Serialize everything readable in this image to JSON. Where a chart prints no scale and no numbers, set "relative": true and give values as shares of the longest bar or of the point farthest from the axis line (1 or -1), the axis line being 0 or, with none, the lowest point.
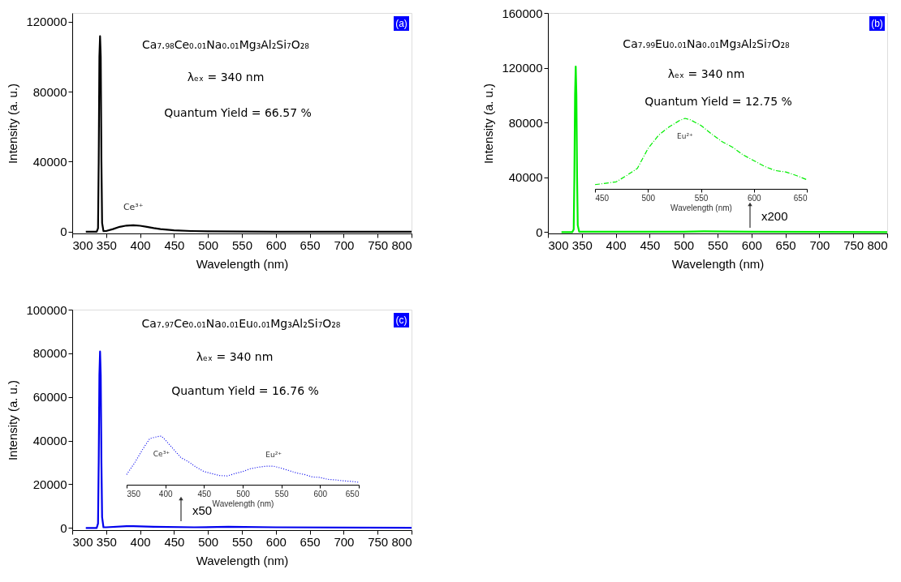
{
  "chart_data": [
    {
      "type": "line",
      "xlabel": "Wavelength (nm)",
      "ylabel": "Intensity (a. u.)",
      "xlim": [
        300,
        800
      ],
      "ylim": [
        -1000,
        125000
      ],
      "xticks": [
        300,
        350,
        400,
        450,
        500,
        550,
        600,
        650,
        700,
        750,
        800
      ],
      "yticks": [
        0,
        40000,
        80000,
        120000
      ],
      "marker": "none",
      "line_style": "solid",
      "series": [
        {
          "color": "#000000",
          "x": [
            320,
            330,
            336,
            338,
            339,
            340,
            341,
            342,
            343,
            344,
            346,
            350,
            360,
            370,
            380,
            390,
            400,
            410,
            420,
            430,
            450,
            475,
            500,
            550,
            600,
            700,
            800
          ],
          "values": [
            0,
            0,
            0,
            2000,
            40000,
            100000,
            111700,
            100000,
            40000,
            5000,
            300,
            400,
            1500,
            2800,
            3500,
            3700,
            3400,
            2800,
            2100,
            1500,
            800,
            400,
            200,
            100,
            0,
            0,
            0
          ]
        }
      ],
      "annotations": [
        "(a)",
        "Ca₇.₉₈Ce₀.₀₁Na₀.₀₁Mg₃Al₂Si₇O₂₈",
        "λₑₓ = 340 nm",
        "Quantum Yield = 66.57 %",
        {
          "text": "Ce³⁺",
          "x": 390,
          "y": 3700
        }
      ]
    },
    {
      "type": "line",
      "xlabel": "Wavelength (nm)",
      "ylabel": "Intensity (a. u.)",
      "xlim": [
        300,
        800
      ],
      "ylim": [
        -1000,
        160000
      ],
      "xticks": [
        300,
        350,
        400,
        450,
        500,
        550,
        600,
        650,
        700,
        750,
        800
      ],
      "yticks": [
        0,
        40000,
        80000,
        120000,
        160000
      ],
      "marker": "none",
      "line_style": "solid",
      "series": [
        {
          "color": "#00ee00",
          "x": [
            320,
            330,
            336,
            338,
            339,
            340,
            341,
            342,
            343,
            344,
            346,
            350,
            400,
            450,
            500,
            530,
            560,
            600,
            700,
            800
          ],
          "values": [
            0,
            0,
            0,
            2000,
            40000,
            100000,
            120900,
            100000,
            40000,
            5000,
            300,
            300,
            200,
            200,
            300,
            500,
            400,
            300,
            100,
            0
          ]
        }
      ],
      "annotations": [
        "(b)",
        "Ca₇.₉₉Eu₀.₀₁Na₀.₀₁Mg₃Al₂Si₇O₂₈",
        "λₑₓ = 340 nm",
        "Quantum Yield = 12.75 %",
        "x200"
      ]
    },
    {
      "type": "line",
      "relative": true,
      "xlabel": "Wavelength (nm)",
      "xlim": [
        450,
        650
      ],
      "xticks": [
        450,
        500,
        550,
        600,
        650
      ],
      "marker": "none",
      "line_style": "dashed",
      "series": [
        {
          "color": "#00ee00",
          "x": [
            450,
            460,
            470,
            480,
            490,
            500,
            510,
            520,
            530,
            535,
            540,
            550,
            560,
            570,
            580,
            590,
            600,
            610,
            620,
            630,
            640,
            650
          ],
          "values": [
            0.06,
            0.08,
            0.1,
            0.19,
            0.29,
            0.57,
            0.76,
            0.88,
            0.97,
            1.0,
            0.98,
            0.9,
            0.78,
            0.67,
            0.59,
            0.48,
            0.4,
            0.32,
            0.26,
            0.24,
            0.19,
            0.13
          ]
        }
      ],
      "annotations": [
        {
          "text": "Eu²⁺",
          "x": 535,
          "y": 1.0
        }
      ]
    },
    {
      "type": "line",
      "xlabel": "Wavelength (nm)",
      "ylabel": "Intensity (a. u.)",
      "xlim": [
        300,
        800
      ],
      "ylim": [
        -1000,
        100000
      ],
      "xticks": [
        300,
        350,
        400,
        450,
        500,
        550,
        600,
        650,
        700,
        750,
        800
      ],
      "yticks": [
        0,
        20000,
        40000,
        60000,
        80000,
        100000
      ],
      "marker": "none",
      "line_style": "solid",
      "series": [
        {
          "color": "#0000ee",
          "x": [
            320,
            330,
            336,
            338,
            339,
            340,
            341,
            342,
            343,
            344,
            346,
            350,
            380,
            390,
            420,
            480,
            530,
            600,
            800
          ],
          "values": [
            0,
            0,
            0,
            2000,
            30000,
            70000,
            80800,
            70000,
            30000,
            5000,
            300,
            300,
            800,
            800,
            500,
            300,
            500,
            300,
            100
          ]
        }
      ],
      "annotations": [
        "(c)",
        "Ca₇.₉₇Ce₀.₀₁Na₀.₀₁Eu₀.₀₁Mg₃Al₂Si₇O₂₈",
        "λₑₓ = 340 nm",
        "Quantum Yield = 16.76 %",
        "x50"
      ]
    },
    {
      "type": "line",
      "relative": true,
      "xlabel": "Wavelength (nm)",
      "xlim": [
        350,
        650
      ],
      "xticks": [
        350,
        400,
        450,
        500,
        550,
        600,
        650
      ],
      "marker": "none",
      "line_style": "dotted",
      "series": [
        {
          "color": "#0000ee",
          "x": [
            350,
            360,
            370,
            380,
            390,
            395,
            400,
            410,
            420,
            430,
            440,
            450,
            460,
            470,
            480,
            490,
            500,
            510,
            520,
            530,
            540,
            550,
            560,
            570,
            580,
            590,
            600,
            610,
            620,
            630,
            640,
            650
          ],
          "values": [
            0.21,
            0.44,
            0.71,
            0.95,
            0.99,
            1.0,
            0.92,
            0.74,
            0.56,
            0.47,
            0.36,
            0.27,
            0.23,
            0.19,
            0.18,
            0.23,
            0.27,
            0.33,
            0.36,
            0.38,
            0.38,
            0.34,
            0.29,
            0.24,
            0.21,
            0.16,
            0.15,
            0.11,
            0.1,
            0.08,
            0.07,
            0.05
          ]
        }
      ],
      "annotations": [
        {
          "text": "Ce³⁺",
          "x": 395,
          "y": 1.0
        },
        {
          "text": "Eu²⁺",
          "x": 540,
          "y": 0.38
        }
      ]
    }
  ]
}
